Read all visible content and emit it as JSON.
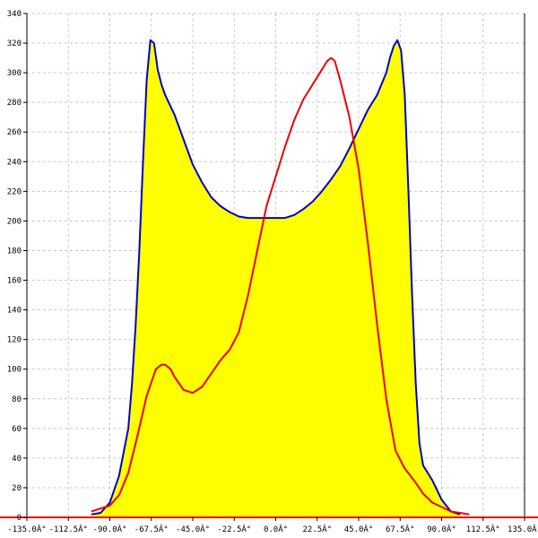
{
  "chart_data": {
    "type": "area",
    "title": "",
    "xlabel": "",
    "ylabel": "",
    "xlim": [
      -135,
      135
    ],
    "ylim": [
      0,
      340
    ],
    "x_ticks": [
      -135,
      -112.5,
      -90,
      -67.5,
      -45,
      -22.5,
      0,
      22.5,
      45,
      67.5,
      90,
      112.5,
      135
    ],
    "x_tick_labels": [
      "-135.0Â°",
      "-112.5Â°",
      "-90.0Â°",
      "-67.5Â°",
      "-45.0Â°",
      "-22.5Â°",
      "0.0Â°",
      "22.5Â°",
      "45.0Â°",
      "67.5Â°",
      "90.0Â°",
      "112.5Â°",
      "135.0Â°"
    ],
    "y_ticks": [
      0,
      20,
      40,
      60,
      80,
      100,
      120,
      140,
      160,
      180,
      200,
      220,
      240,
      260,
      280,
      300,
      320,
      340
    ],
    "grid": true,
    "series": [
      {
        "color": "#0000cc",
        "fill": "#ffff00",
        "x": [
          -100,
          -95,
          -90,
          -85,
          -80,
          -78,
          -76,
          -74,
          -72,
          -70,
          -68,
          -66,
          -64,
          -62,
          -60,
          -55,
          -50,
          -45,
          -40,
          -35,
          -30,
          -25,
          -20,
          -15,
          -10,
          -5,
          0,
          5,
          10,
          15,
          20,
          25,
          30,
          35,
          40,
          45,
          50,
          55,
          60,
          62,
          64,
          66,
          68,
          70,
          72,
          74,
          76,
          78,
          80,
          85,
          90,
          95,
          100
        ],
        "y": [
          2,
          3,
          10,
          28,
          60,
          90,
          130,
          180,
          240,
          295,
          322,
          320,
          302,
          292,
          285,
          272,
          255,
          238,
          226,
          216,
          210,
          206,
          203,
          202,
          202,
          202,
          202,
          202,
          204,
          208,
          213,
          220,
          228,
          237,
          249,
          262,
          275,
          285,
          300,
          310,
          318,
          322,
          315,
          285,
          220,
          150,
          90,
          50,
          35,
          25,
          12,
          4,
          2
        ]
      },
      {
        "color": "#ee0000",
        "x": [
          -100,
          -95,
          -90,
          -85,
          -80,
          -75,
          -70,
          -65,
          -62,
          -60,
          -57,
          -55,
          -50,
          -45,
          -40,
          -35,
          -30,
          -25,
          -20,
          -15,
          -10,
          -5,
          0,
          5,
          10,
          15,
          20,
          25,
          28,
          30,
          32,
          35,
          40,
          45,
          50,
          55,
          60,
          65,
          70,
          75,
          80,
          85,
          90,
          95,
          100,
          105
        ],
        "y": [
          4,
          6,
          8,
          15,
          30,
          55,
          82,
          100,
          103,
          103,
          100,
          95,
          86,
          84,
          88,
          97,
          106,
          113,
          125,
          150,
          180,
          210,
          230,
          250,
          268,
          282,
          292,
          302,
          308,
          310,
          308,
          295,
          270,
          235,
          185,
          130,
          80,
          45,
          33,
          25,
          16,
          10,
          7,
          4,
          3,
          2
        ]
      }
    ]
  }
}
